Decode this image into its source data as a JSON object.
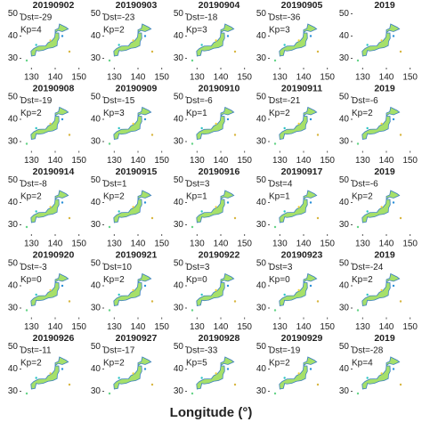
{
  "xticks": [
    130,
    140,
    150
  ],
  "yticks": [
    30,
    40,
    50
  ],
  "xlim": [
    125,
    152
  ],
  "ylim": [
    25,
    53
  ],
  "xlabel": "Longitude (°)",
  "panels": [
    {
      "title": "20190902",
      "dst": "Dst=-29",
      "kp": "Kp=4"
    },
    {
      "title": "20190903",
      "dst": "Dst=-23",
      "kp": "Kp=2"
    },
    {
      "title": "20190904",
      "dst": "Dst=-18",
      "kp": "Kp=3"
    },
    {
      "title": "20190905",
      "dst": "Dst=-36",
      "kp": "Kp=3"
    },
    {
      "title": "2019"
    },
    {
      "title": "20190908",
      "dst": "Dst=-19",
      "kp": "Kp=2"
    },
    {
      "title": "20190909",
      "dst": "Dst=-15",
      "kp": "Kp=3"
    },
    {
      "title": "20190910",
      "dst": "Dst=-6",
      "kp": "Kp=1"
    },
    {
      "title": "20190911",
      "dst": "Dst=-21",
      "kp": "Kp=2"
    },
    {
      "title": "2019",
      "dst": "Dst=-6",
      "kp": "Kp=2"
    },
    {
      "title": "20190914",
      "dst": "Dst=-8",
      "kp": "Kp=2"
    },
    {
      "title": "20190915",
      "dst": "Dst=1",
      "kp": "Kp=2"
    },
    {
      "title": "20190916",
      "dst": "Dst=3",
      "kp": "Kp=1"
    },
    {
      "title": "20190917",
      "dst": "Dst=4",
      "kp": "Kp=1"
    },
    {
      "title": "2019",
      "dst": "Dst=-6",
      "kp": "Kp=2"
    },
    {
      "title": "20190920",
      "dst": "Dst=-3",
      "kp": "Kp=0"
    },
    {
      "title": "20190921",
      "dst": "Dst=10",
      "kp": "Kp=2"
    },
    {
      "title": "20190922",
      "dst": "Dst=3",
      "kp": "Kp=0"
    },
    {
      "title": "20190923",
      "dst": "Dst=3",
      "kp": "Kp=0"
    },
    {
      "title": "2019",
      "dst": "Dst=-24",
      "kp": "Kp=2"
    },
    {
      "title": "20190926",
      "dst": "Dst=-11",
      "kp": "Kp=2"
    },
    {
      "title": "20190927",
      "dst": "Dst=-17",
      "kp": "Kp=2"
    },
    {
      "title": "20190928",
      "dst": "Dst=-33",
      "kp": "Kp=5"
    },
    {
      "title": "20190929",
      "dst": "Dst=-19",
      "kp": "Kp=2"
    },
    {
      "title": "2019",
      "dst": "Dst=-28",
      "kp": "Kp=4"
    }
  ]
}
